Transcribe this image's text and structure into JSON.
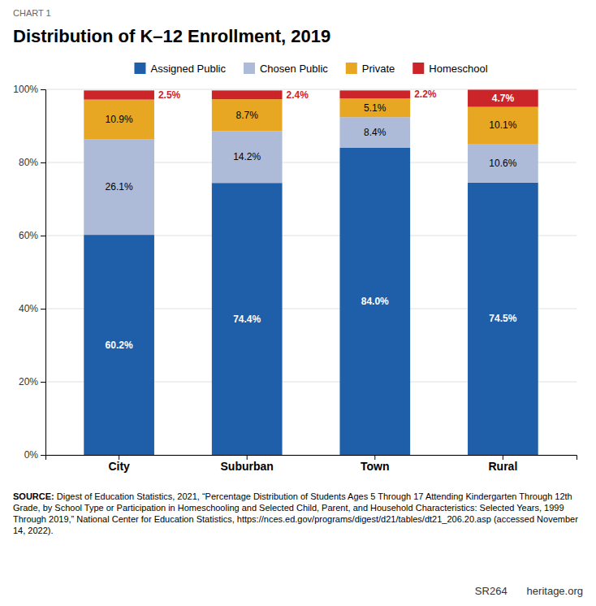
{
  "chart_data": {
    "type": "bar",
    "stacked": true,
    "title": "Distribution of K–12 Enrollment, 2019",
    "categories": [
      "City",
      "Suburban",
      "Town",
      "Rural"
    ],
    "series": [
      {
        "name": "Assigned Public",
        "color": "#1F5EA8",
        "values": [
          60.2,
          74.4,
          84.0,
          74.5
        ],
        "value_labels": [
          "60.2%",
          "74.4%",
          "84.0%",
          "74.5%"
        ]
      },
      {
        "name": "Chosen Public",
        "color": "#ADBBD8",
        "values": [
          26.1,
          14.2,
          8.4,
          10.6
        ],
        "value_labels": [
          "26.1%",
          "14.2%",
          "8.4%",
          "10.6%"
        ]
      },
      {
        "name": "Private",
        "color": "#E8A722",
        "values": [
          10.9,
          8.7,
          5.1,
          10.1
        ],
        "value_labels": [
          "10.9%",
          "8.7%",
          "5.1%",
          "10.1%"
        ]
      },
      {
        "name": "Homeschool",
        "color": "#CC2529",
        "values": [
          2.5,
          2.4,
          2.2,
          4.7
        ],
        "value_labels": [
          "2.5%",
          "2.4%",
          "2.2%",
          "4.7%"
        ]
      }
    ],
    "ylim": [
      0,
      100
    ],
    "yticks": [
      {
        "value": 0,
        "label": "0%"
      },
      {
        "value": 20,
        "label": "20%"
      },
      {
        "value": 40,
        "label": "40%"
      },
      {
        "value": 60,
        "label": "60%"
      },
      {
        "value": 80,
        "label": "80%"
      },
      {
        "value": 100,
        "label": "100%"
      }
    ],
    "grid": true,
    "legend": "top",
    "data_labels": true,
    "annotations": [
      "CHART 1",
      "SOURCE: Digest of Education Statistics, 2021, “Percentage Distribution of Students Ages 5 Through 17 Attending Kindergarten Through 12th Grade, by School Type or Participation in Homeschooling and Selected Child, Parent, and Household Characteristics: Selected Years, 1999 Through 2019,” National Center for Education Statistics, https://nces.ed.gov/programs/digest/d21/tables/dt21_206.20.asp (accessed November 14, 2022).",
      "SR264",
      "heritage.org"
    ]
  }
}
